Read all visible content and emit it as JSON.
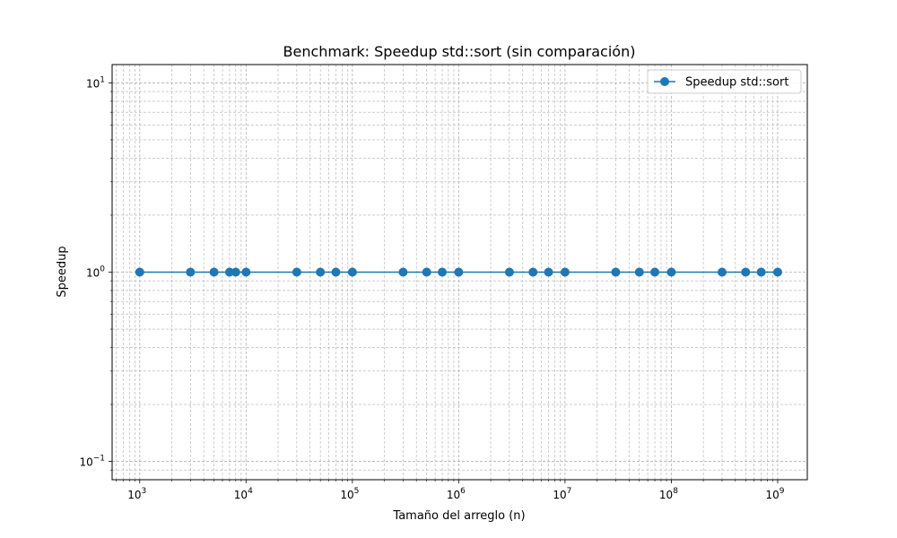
{
  "chart_data": {
    "type": "line",
    "title": "Benchmark: Speedup std::sort (sin comparación)",
    "xlabel": "Tamaño del arreglo (n)",
    "ylabel": "Speedup",
    "xscale": "log",
    "yscale": "log",
    "xlim": [
      550,
      1900000000
    ],
    "ylim": [
      0.08,
      12.5
    ],
    "grid": true,
    "legend_position": "top-right",
    "x_ticks": [
      {
        "value": 1000,
        "base": "10",
        "exp": "3"
      },
      {
        "value": 10000,
        "base": "10",
        "exp": "4"
      },
      {
        "value": 100000,
        "base": "10",
        "exp": "5"
      },
      {
        "value": 1000000,
        "base": "10",
        "exp": "6"
      },
      {
        "value": 10000000,
        "base": "10",
        "exp": "7"
      },
      {
        "value": 100000000,
        "base": "10",
        "exp": "8"
      },
      {
        "value": 1000000000,
        "base": "10",
        "exp": "9"
      }
    ],
    "y_ticks": [
      {
        "value": 0.1,
        "base": "10",
        "exp": "−1"
      },
      {
        "value": 1,
        "base": "10",
        "exp": "0"
      },
      {
        "value": 10,
        "base": "10",
        "exp": "1"
      }
    ],
    "series": [
      {
        "name": "Speedup std::sort",
        "color": "#1f77b4",
        "x": [
          1000,
          3000,
          5000,
          7000,
          8000,
          10000,
          30000,
          50000,
          70000,
          100000,
          300000,
          500000,
          700000,
          1000000,
          3000000,
          5000000,
          7000000,
          10000000,
          30000000,
          50000000,
          70000000,
          100000000,
          300000000,
          500000000,
          700000000,
          1000000000
        ],
        "y": [
          1,
          1,
          1,
          1,
          1,
          1,
          1,
          1,
          1,
          1,
          1,
          1,
          1,
          1,
          1,
          1,
          1,
          1,
          1,
          1,
          1,
          1,
          1,
          1,
          1,
          1
        ]
      }
    ]
  }
}
